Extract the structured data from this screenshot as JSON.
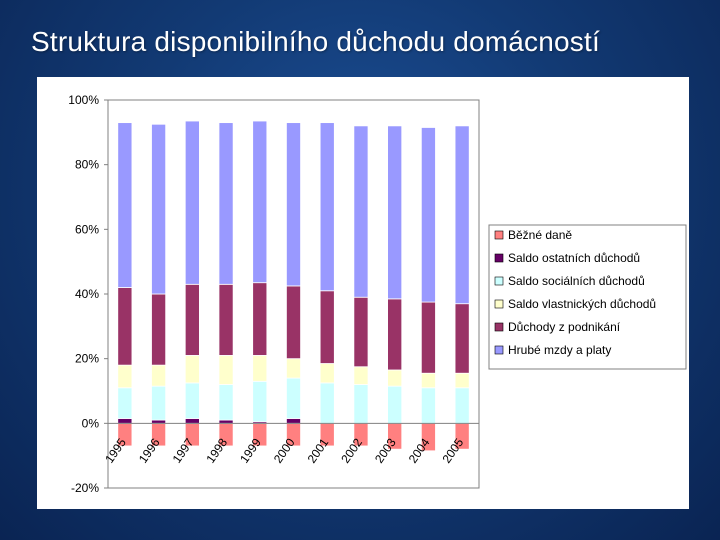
{
  "slide": {
    "title": "Struktura disponibilního důchodu domácností"
  },
  "chart_data": {
    "type": "bar",
    "stacked": true,
    "categories": [
      "1995",
      "1996",
      "1997",
      "1998",
      "1999",
      "2000",
      "2001",
      "2002",
      "2003",
      "2004",
      "2005"
    ],
    "series": [
      {
        "name": "Běžné daně",
        "color": "#ff8080",
        "values": [
          -7,
          -7,
          -7,
          -7,
          -7,
          -7,
          -7,
          -7,
          -8,
          -8.5,
          -8
        ]
      },
      {
        "name": "Saldo ostatních důchodů",
        "color": "#660066",
        "values": [
          1.5,
          1,
          1.5,
          1,
          0.5,
          1.5,
          0,
          0,
          0,
          0,
          0
        ]
      },
      {
        "name": "Saldo sociálních důchodů",
        "color": "#ccffff",
        "values": [
          9.5,
          10.5,
          11,
          11,
          12.5,
          12.5,
          12.5,
          12,
          11.5,
          11,
          11
        ]
      },
      {
        "name": "Saldo vlastnických důchodů",
        "color": "#ffffcc",
        "values": [
          7,
          6.5,
          8.5,
          9,
          8,
          6,
          6,
          5.5,
          5,
          4.5,
          4.5
        ]
      },
      {
        "name": "Důchody z podnikání",
        "color": "#993366",
        "values": [
          24,
          22,
          22,
          22,
          22.5,
          22.5,
          22.5,
          21.5,
          22,
          22,
          21.5
        ]
      },
      {
        "name": "Hrubé mzdy a platy",
        "color": "#9999ff",
        "values": [
          51,
          52.5,
          50.5,
          50,
          50,
          50.5,
          52,
          53,
          53.5,
          54,
          55
        ]
      }
    ],
    "ylim": [
      -20,
      100
    ],
    "yticks": [
      -20,
      0,
      20,
      40,
      60,
      80,
      100
    ],
    "ytick_labels": [
      "-20%",
      "0%",
      "20%",
      "40%",
      "60%",
      "80%",
      "100%"
    ],
    "grid": false,
    "legend_position": "right"
  }
}
